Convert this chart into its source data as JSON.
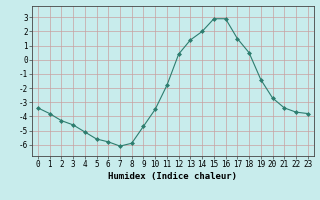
{
  "x": [
    0,
    1,
    2,
    3,
    4,
    5,
    6,
    7,
    8,
    9,
    10,
    11,
    12,
    13,
    14,
    15,
    16,
    17,
    18,
    19,
    20,
    21,
    22,
    23
  ],
  "y": [
    -3.4,
    -3.8,
    -4.3,
    -4.6,
    -5.1,
    -5.6,
    -5.8,
    -6.1,
    -5.9,
    -4.7,
    -3.5,
    -1.8,
    0.4,
    1.4,
    2.0,
    2.9,
    2.9,
    1.5,
    0.5,
    -1.4,
    -2.7,
    -3.4,
    -3.7,
    -3.8
  ],
  "line_color": "#2d7d6f",
  "marker": "D",
  "marker_size": 2.0,
  "bg_color": "#c8ecec",
  "grid_color": "#c8a0a0",
  "xlabel": "Humidex (Indice chaleur)",
  "xlim": [
    -0.5,
    23.5
  ],
  "ylim": [
    -6.8,
    3.8
  ],
  "yticks": [
    -6,
    -5,
    -4,
    -3,
    -2,
    -1,
    0,
    1,
    2,
    3
  ],
  "xticks": [
    0,
    1,
    2,
    3,
    4,
    5,
    6,
    7,
    8,
    9,
    10,
    11,
    12,
    13,
    14,
    15,
    16,
    17,
    18,
    19,
    20,
    21,
    22,
    23
  ],
  "label_fontsize": 6.5,
  "tick_fontsize": 5.5
}
